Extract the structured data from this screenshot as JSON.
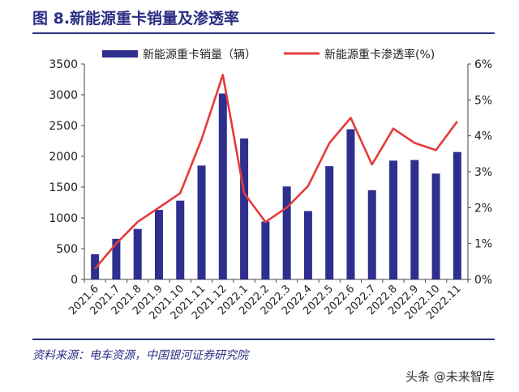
{
  "figure": {
    "title": "图 8.新能源重卡销量及渗透率",
    "source": "资料来源：电车资源，中国银河证券研究院",
    "watermark": "头条 @未来智库"
  },
  "chart_data": {
    "type": "bar+line",
    "categories": [
      "2021.6",
      "2021.7",
      "2021.8",
      "2021.9",
      "2021.10",
      "2021.11",
      "2021.12",
      "2022.1",
      "2022.2",
      "2022.3",
      "2022.4",
      "2022.5",
      "2022.6",
      "2022.7",
      "2022.8",
      "2022.9",
      "2022.10",
      "2022.11"
    ],
    "series": [
      {
        "name": "新能源重卡销量（辆）",
        "type": "bar",
        "axis": "left",
        "color": "#2e2f8f",
        "values": [
          410,
          660,
          820,
          1130,
          1280,
          1850,
          3020,
          2290,
          940,
          1510,
          1110,
          1840,
          2440,
          1450,
          1930,
          1940,
          1720,
          2070
        ]
      },
      {
        "name": "新能源重卡渗透率(%)",
        "type": "line",
        "axis": "right",
        "color": "#e53b3b",
        "values": [
          0.3,
          1.0,
          1.6,
          2.0,
          2.4,
          3.9,
          5.7,
          2.4,
          1.6,
          2.0,
          2.6,
          3.8,
          4.5,
          3.2,
          4.2,
          3.8,
          3.6,
          4.4
        ]
      }
    ],
    "y_left": {
      "min": 0,
      "max": 3500,
      "ticks": [
        0,
        500,
        1000,
        1500,
        2000,
        2500,
        3000,
        3500
      ]
    },
    "y_right": {
      "min": 0,
      "max": 6,
      "ticks": [
        "0%",
        "1%",
        "2%",
        "3%",
        "4%",
        "5%",
        "6%"
      ]
    },
    "legend": "top",
    "grid": false
  }
}
